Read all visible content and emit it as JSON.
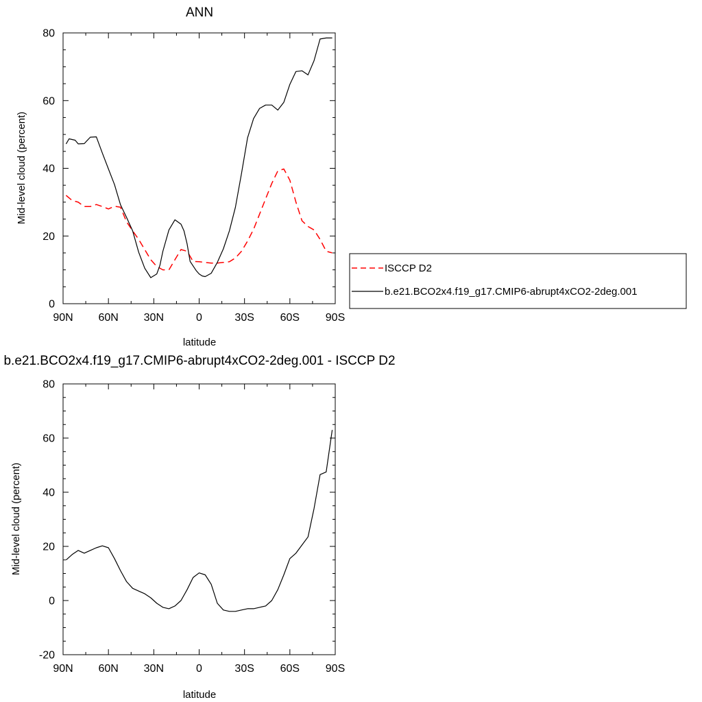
{
  "chart_data": [
    {
      "type": "line",
      "title": "ANN",
      "xlabel": "latitude",
      "ylabel": "Mid-level cloud (percent)",
      "xlim": [
        90,
        -90
      ],
      "ylim": [
        0,
        80
      ],
      "x_ticks": [
        90,
        60,
        30,
        0,
        -30,
        -60,
        -90
      ],
      "x_tick_labels": [
        "90N",
        "60N",
        "30N",
        "0",
        "30S",
        "60S",
        "90S"
      ],
      "y_ticks": [
        0,
        20,
        40,
        60,
        80
      ],
      "y_tick_labels": [
        "0",
        "20",
        "40",
        "60",
        "80"
      ],
      "grid": false,
      "legend": {
        "position": "right",
        "entries": [
          {
            "label": "ISCCP D2",
            "color": "#ff0000",
            "dash": "dashed"
          },
          {
            "label": "b.e21.BCO2x4.f19_g17.CMIP6-abrupt4xCO2-2deg.001",
            "color": "#000000",
            "dash": "solid"
          }
        ]
      },
      "series": [
        {
          "name": "ISCCP D2",
          "color": "#ff0000",
          "dash": "dashed",
          "x": [
            88,
            84,
            80,
            76,
            72,
            68,
            64,
            60,
            56,
            52,
            48,
            44,
            40,
            36,
            32,
            28,
            24,
            20,
            16,
            12,
            8,
            4,
            0,
            -4,
            -8,
            -12,
            -16,
            -20,
            -24,
            -28,
            -32,
            -36,
            -40,
            -44,
            -48,
            -52,
            -56,
            -60,
            -64,
            -68,
            -72,
            -76,
            -80,
            -84,
            -88
          ],
          "y": [
            32,
            30.5,
            30,
            28.7,
            28.7,
            29.3,
            28.7,
            28,
            28.8,
            28.5,
            24.2,
            21.5,
            19,
            16,
            13,
            11,
            10,
            10,
            13,
            16,
            15.5,
            12.5,
            12.4,
            12.2,
            12,
            12,
            12.2,
            12.4,
            13.5,
            15.5,
            18.5,
            22,
            26.5,
            31,
            35.5,
            39.2,
            39.8,
            36.5,
            30,
            24.5,
            22.8,
            21.8,
            19,
            15.5,
            15
          ]
        },
        {
          "name": "b.e21.BCO2x4.f19_g17.CMIP6-abrupt4xCO2-2deg.001",
          "color": "#000000",
          "dash": "solid",
          "x": [
            88,
            86,
            82,
            80,
            76,
            72,
            68,
            64,
            60,
            56,
            52,
            48,
            44,
            40,
            36,
            32,
            28,
            26,
            24,
            20,
            16,
            12,
            10,
            8,
            6,
            2,
            0,
            -2,
            -4,
            -8,
            -12,
            -16,
            -20,
            -24,
            -28,
            -32,
            -36,
            -40,
            -44,
            -48,
            -52,
            -56,
            -60,
            -64,
            -68,
            -72,
            -76,
            -80,
            -84,
            -86,
            -88
          ],
          "y": [
            47.2,
            48.7,
            48.3,
            47.2,
            47.3,
            49.2,
            49.3,
            44.5,
            39.8,
            35.2,
            29.2,
            25.5,
            21.5,
            15.2,
            10.5,
            7.7,
            8.8,
            11.3,
            15.5,
            21.8,
            24.8,
            23.5,
            21.5,
            17.7,
            12.5,
            9.8,
            8.8,
            8.2,
            8,
            9,
            12.2,
            16.2,
            21.5,
            28.5,
            38.5,
            49,
            54.7,
            57.7,
            58.7,
            58.7,
            57.2,
            59.5,
            64.8,
            68.6,
            68.8,
            67.6,
            71.8,
            78.2,
            78.5,
            78.5,
            78.5
          ]
        }
      ]
    },
    {
      "type": "line",
      "title": "b.e21.BCO2x4.f19_g17.CMIP6-abrupt4xCO2-2deg.001 - ISCCP D2",
      "xlabel": "latitude",
      "ylabel": "Mid-level cloud (percent)",
      "xlim": [
        90,
        -90
      ],
      "ylim": [
        -20,
        80
      ],
      "x_ticks": [
        90,
        60,
        30,
        0,
        -30,
        -60,
        -90
      ],
      "x_tick_labels": [
        "90N",
        "60N",
        "30N",
        "0",
        "30S",
        "60S",
        "90S"
      ],
      "y_ticks": [
        -20,
        0,
        20,
        40,
        60,
        80
      ],
      "y_tick_labels": [
        "-20",
        "0",
        "20",
        "40",
        "60",
        "80"
      ],
      "grid": false,
      "series": [
        {
          "color": "#000000",
          "dash": "solid",
          "x": [
            88,
            84,
            80,
            76,
            72,
            68,
            64,
            60,
            56,
            52,
            48,
            44,
            40,
            36,
            32,
            28,
            24,
            20,
            16,
            12,
            8,
            4,
            0,
            -4,
            -8,
            -12,
            -16,
            -20,
            -24,
            -28,
            -32,
            -36,
            -40,
            -44,
            -48,
            -52,
            -56,
            -60,
            -64,
            -68,
            -72,
            -76,
            -80,
            -84,
            -88
          ],
          "y": [
            15,
            17,
            18.5,
            17.5,
            18.5,
            19.5,
            20.2,
            19.5,
            15.5,
            11,
            7,
            4.5,
            3.5,
            2.5,
            1,
            -1,
            -2.5,
            -3,
            -2,
            0,
            4,
            8.5,
            10.2,
            9.5,
            6,
            -1,
            -3.5,
            -4,
            -4,
            -3.5,
            -3,
            -3,
            -2.5,
            -2,
            0,
            4,
            9.5,
            15.5,
            17.5,
            20.5,
            23.5,
            34,
            46.5,
            47.5,
            63
          ]
        }
      ]
    }
  ]
}
